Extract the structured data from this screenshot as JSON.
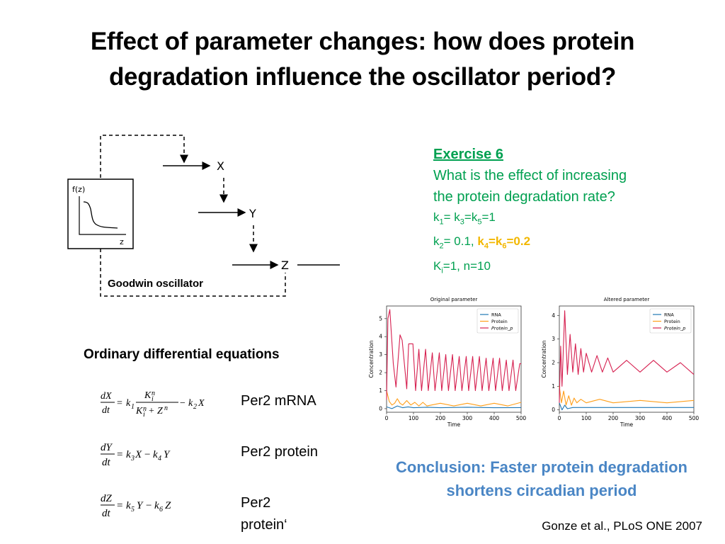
{
  "title": {
    "line1": "Effect of parameter changes: how does protein",
    "line2": "degradation influence the oscillator period?"
  },
  "diagram": {
    "caption": "Goodwin oscillator",
    "node_x": "X",
    "node_y": "Y",
    "node_z": "Z",
    "inset_ylabel": "f(z)",
    "inset_xlabel": "z"
  },
  "ode": {
    "heading": "Ordinary differential equations",
    "labels": [
      "Per2 mRNA",
      "Per2 protein",
      "Per2",
      "protein‘"
    ]
  },
  "exercise": {
    "heading": "Exercise 6",
    "question_line1": "What is the effect of increasing",
    "question_line2": "the protein degradation rate?",
    "params": {
      "k": "k",
      "eq": "=",
      "s1": "1",
      "s3": "3",
      "s5": "5",
      "s2": "2",
      "s4": "4",
      "s6": "6",
      "si": "i",
      "line1_a": "= k",
      "line1_b": "=k",
      "line1_c": "=1",
      "line2_a": "= 0.1, ",
      "highlight_a": "k",
      "highlight_b": "=k",
      "highlight_c": "=0.2",
      "line3_a": "K",
      "line3_b": "=1, n=10"
    }
  },
  "conclusion": {
    "line1": "Conclusion: Faster protein degradation",
    "line2": "shortens circadian period"
  },
  "citation": "Gonze et al., PLoS ONE 2007",
  "colors": {
    "exercise": "#00A050",
    "highlight": "#F2B700",
    "conclusion": "#4A86C5",
    "rna": "#1f77b4",
    "protein": "#ff9f1a",
    "protein_p": "#d62050"
  },
  "chart_data": [
    {
      "type": "line",
      "title": "Original parameter",
      "xlabel": "Time",
      "ylabel": "Concentration",
      "xlim": [
        0,
        500
      ],
      "ylim": [
        -0.2,
        5.7
      ],
      "xticks": [
        0,
        100,
        200,
        300,
        400,
        500
      ],
      "yticks": [
        0,
        1,
        2,
        3,
        4,
        5
      ],
      "legend": [
        "RNA",
        "Protein",
        "Protein_p"
      ],
      "legend_position": "top-right",
      "series": [
        {
          "name": "RNA",
          "x": [
            0,
            20,
            40,
            60,
            80,
            100,
            150,
            200,
            300,
            400,
            500
          ],
          "values": [
            0.1,
            0.0,
            0.15,
            0.05,
            0.1,
            0.05,
            0.08,
            0.05,
            0.08,
            0.05,
            0.06
          ]
        },
        {
          "name": "Protein",
          "x": [
            0,
            10,
            20,
            30,
            40,
            50,
            60,
            75,
            90,
            105,
            120,
            135,
            150,
            200,
            250,
            300,
            350,
            400,
            450,
            500
          ],
          "values": [
            1.0,
            0.4,
            0.2,
            0.3,
            0.55,
            0.3,
            0.2,
            0.45,
            0.2,
            0.35,
            0.15,
            0.35,
            0.15,
            0.3,
            0.15,
            0.3,
            0.15,
            0.3,
            0.15,
            0.35
          ]
        },
        {
          "name": "Protein_p",
          "x": [
            0,
            5,
            12,
            25,
            35,
            50,
            58,
            75,
            82,
            98,
            108,
            120,
            130,
            145,
            155,
            170,
            180,
            196,
            205,
            220,
            230,
            245,
            255,
            270,
            280,
            296,
            305,
            320,
            330,
            345,
            355,
            370,
            380,
            396,
            405,
            420,
            430,
            445,
            455,
            470,
            480,
            495,
            500
          ],
          "values": [
            0.5,
            5.0,
            5.5,
            2.5,
            1.2,
            4.1,
            3.8,
            1.1,
            3.6,
            3.6,
            1.0,
            3.3,
            1.0,
            3.3,
            1.0,
            3.1,
            1.0,
            3.1,
            1.0,
            3.0,
            1.0,
            3.0,
            1.0,
            2.9,
            1.0,
            2.9,
            1.0,
            2.9,
            1.0,
            2.9,
            1.0,
            2.8,
            1.0,
            2.8,
            1.0,
            2.8,
            1.0,
            2.7,
            1.0,
            2.7,
            1.0,
            2.5,
            2.5
          ]
        }
      ]
    },
    {
      "type": "line",
      "title": "Altered parameter",
      "xlabel": "Time",
      "ylabel": "Concentration",
      "xlim": [
        0,
        500
      ],
      "ylim": [
        -0.1,
        4.4
      ],
      "xticks": [
        0,
        100,
        200,
        300,
        400,
        500
      ],
      "yticks": [
        0,
        1,
        2,
        3,
        4
      ],
      "legend": [
        "RNA",
        "Protein",
        "Protein_p"
      ],
      "legend_position": "top-right",
      "series": [
        {
          "name": "RNA",
          "x": [
            0,
            10,
            20,
            30,
            50,
            100,
            200,
            300,
            400,
            500
          ],
          "values": [
            0.3,
            0.0,
            0.2,
            0.05,
            0.1,
            0.1,
            0.1,
            0.1,
            0.1,
            0.1
          ]
        },
        {
          "name": "Protein",
          "x": [
            0,
            8,
            16,
            25,
            35,
            45,
            55,
            65,
            80,
            100,
            150,
            200,
            300,
            400,
            500
          ],
          "values": [
            1.0,
            0.3,
            0.8,
            0.2,
            0.6,
            0.2,
            0.5,
            0.3,
            0.45,
            0.3,
            0.45,
            0.3,
            0.4,
            0.3,
            0.4
          ]
        },
        {
          "name": "Protein_p",
          "x": [
            0,
            5,
            10,
            20,
            30,
            40,
            50,
            60,
            70,
            80,
            90,
            100,
            120,
            140,
            160,
            180,
            200,
            250,
            300,
            350,
            400,
            450,
            500
          ],
          "values": [
            0.3,
            2.7,
            1.0,
            4.2,
            1.5,
            3.2,
            1.6,
            2.8,
            1.5,
            2.6,
            1.6,
            2.4,
            1.6,
            2.3,
            1.6,
            2.2,
            1.6,
            2.1,
            1.6,
            2.1,
            1.6,
            2.0,
            1.5
          ]
        }
      ]
    }
  ]
}
